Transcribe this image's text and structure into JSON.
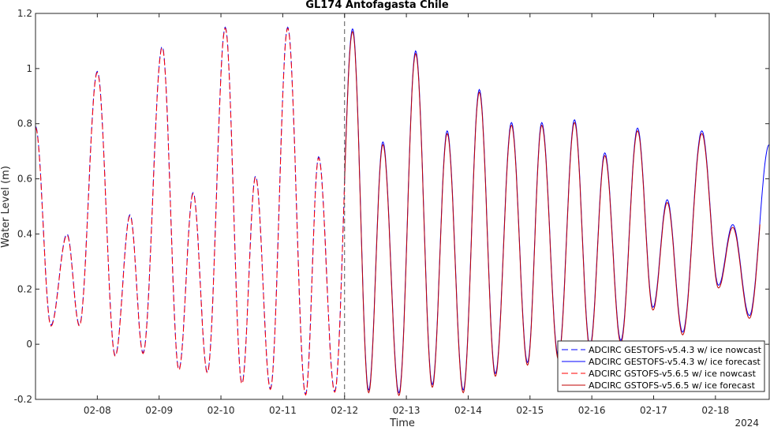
{
  "chart_data": {
    "type": "line",
    "title": "GL174 Antofagasta Chile",
    "xlabel": "Time",
    "ylabel": "Water Level (m)",
    "year_label": "2024",
    "x_unit": "days (February 2024)",
    "xlim": [
      7.0,
      18.87
    ],
    "ylim": [
      -0.2,
      1.2
    ],
    "yticks": [
      -0.2,
      0,
      0.2,
      0.4,
      0.6,
      0.8,
      1,
      1.2
    ],
    "ytick_labels": [
      "-0.2",
      "0",
      "0.2",
      "0.4",
      "0.6",
      "0.8",
      "1",
      "1.2"
    ],
    "xtick_positions": [
      8,
      9,
      10,
      11,
      12,
      13,
      14,
      15,
      16,
      17,
      18
    ],
    "xtick_labels": [
      "02-08",
      "02-09",
      "02-10",
      "02-11",
      "02-12",
      "02-13",
      "02-14",
      "02-15",
      "02-16",
      "02-17",
      "02-18"
    ],
    "nowcast_forecast_boundary": 12.0,
    "grid": false,
    "legend_position": "bottom-right",
    "extrema": [
      [
        7.0,
        0.79
      ],
      [
        7.25,
        0.07
      ],
      [
        7.51,
        0.4
      ],
      [
        7.71,
        0.07
      ],
      [
        8.0,
        0.99
      ],
      [
        8.29,
        -0.04
      ],
      [
        8.53,
        0.47
      ],
      [
        8.74,
        -0.03
      ],
      [
        9.05,
        1.08
      ],
      [
        9.32,
        -0.09
      ],
      [
        9.55,
        0.55
      ],
      [
        9.78,
        -0.1
      ],
      [
        10.07,
        1.15
      ],
      [
        10.34,
        -0.14
      ],
      [
        10.56,
        0.61
      ],
      [
        10.8,
        -0.16
      ],
      [
        11.08,
        1.15
      ],
      [
        11.37,
        -0.18
      ],
      [
        11.58,
        0.68
      ],
      [
        11.84,
        -0.17
      ],
      [
        12.13,
        1.14
      ],
      [
        12.39,
        -0.17
      ],
      [
        12.62,
        0.73
      ],
      [
        12.88,
        -0.18
      ],
      [
        13.15,
        1.06
      ],
      [
        13.42,
        -0.15
      ],
      [
        13.66,
        0.77
      ],
      [
        13.92,
        -0.17
      ],
      [
        14.18,
        0.92
      ],
      [
        14.44,
        -0.11
      ],
      [
        14.7,
        0.8
      ],
      [
        14.96,
        -0.07
      ],
      [
        15.19,
        0.8
      ],
      [
        15.46,
        -0.05
      ],
      [
        15.72,
        0.81
      ],
      [
        15.97,
        -0.01
      ],
      [
        16.21,
        0.69
      ],
      [
        16.47,
        0.01
      ],
      [
        16.74,
        0.78
      ],
      [
        16.99,
        0.13
      ],
      [
        17.22,
        0.52
      ],
      [
        17.47,
        0.04
      ],
      [
        17.78,
        0.77
      ],
      [
        18.05,
        0.21
      ],
      [
        18.28,
        0.43
      ],
      [
        18.55,
        0.1
      ],
      [
        18.87,
        0.72
      ]
    ],
    "series": [
      {
        "name": "ADCIRC GESTOFS-v5.4.3 w/ ice nowcast",
        "color": "#0000ff",
        "dash": "dashed",
        "x_range": [
          7.0,
          12.0
        ],
        "offset": 0.0
      },
      {
        "name": "ADCIRC GESTOFS-v5.4.3 w/ ice forecast",
        "color": "#0000ff",
        "dash": "solid",
        "x_range": [
          12.0,
          18.87
        ],
        "offset": 0.004
      },
      {
        "name": "ADCIRC GSTOFS-v5.6.5 w/ ice nowcast",
        "color": "#ff0000",
        "dash": "dashed",
        "x_range": [
          7.0,
          12.0
        ],
        "offset": -0.004
      },
      {
        "name": "ADCIRC GSTOFS-v5.6.5 w/ ice forecast",
        "color": "#c00000",
        "dash": "solid",
        "x_range": [
          12.0,
          18.72
        ],
        "offset": -0.006
      }
    ]
  }
}
